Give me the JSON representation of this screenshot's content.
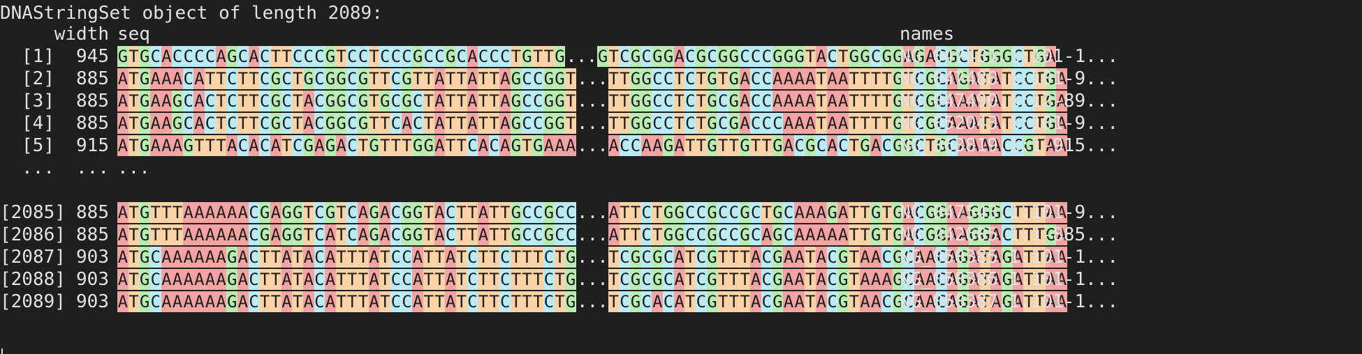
{
  "terminal": {
    "header_line": "DNAStringSet object of length 2089:",
    "col_width": "width",
    "col_seq": "seq",
    "col_names": "names",
    "ellipsis_index": "...",
    "ellipsis_width": "...",
    "ellipsis_seq": "...",
    "seq_gap": "...",
    "rows": [
      {
        "index": "[1]",
        "width": "945",
        "left": "GTGCACCCCAGCACTTCCCGTCCTCCCGCCGCACCCTGTTG",
        "right": "GTCGCGGACGCGGCCCGGGTACTGGCGGAGACGCTGGGCTGA",
        "name": "NG_047481.1:101-1..."
      },
      {
        "index": "[2]",
        "width": "885",
        "left": "ATGAAACATTCTTCGCTGCGGCGTTCGTTATTATTAGCCGGT",
        "right": "TTGGCCTCTGTGACCAAAATAATTTTGTCGCAGATATCCTGA",
        "name": "NG_047488.1:101-9..."
      },
      {
        "index": "[3]",
        "width": "885",
        "left": "ATGAAGCACTCTTCGCTACGGCGTGCGCTATTATTAGCCGGT",
        "right": "TTGGCCTCTGCGACCAAAATAATTTTGTCGCAAATATCCTGA",
        "name": "NG_047490.1:12-89..."
      },
      {
        "index": "[4]",
        "width": "885",
        "left": "ATGAAGCACTCTTCGCTACGGCGTTCACTATTATTAGCCGGT",
        "right": "TTGGCCTCTGCGACCCAAATAATTTTGTCGCAAATATCCTGA",
        "name": "NG_052043.1:101-9..."
      },
      {
        "index": "[5]",
        "width": "915",
        "left": "ATGAAAGTTTACACATCGAGACTGTTTGGATTCACAGTGAAA",
        "right": "ACCAAGATTGTTGTTGACGCACTGACGGCTGCAAAACCGTAA",
        "name": "NG_063819.1:1-915..."
      },
      {
        "index": "[2085]",
        "width": "885",
        "left": "ATGTTTAAAAAACGAGGTCGTCAGACGGTACTTATTGCCGCC",
        "right": "ATTCTGGCCGCCGCTGCAAAGATTGTGACGGAAGGGCTTTAA",
        "name": "NG_047543.1:101-9..."
      },
      {
        "index": "[2086]",
        "width": "885",
        "left": "ATGTTTAAAAAACGAGGTCATCAGACGGTACTTATTGCCGCC",
        "right": "ATTCTGGCCGCCGCAGCAAAAATTGTGACGGAAGGACTTTGA",
        "name": "NG_242605.1:1-885..."
      },
      {
        "index": "[2087]",
        "width": "903",
        "left": "ATGCAAAAAAGACTTATACATTTATCCATTATCTTCTTTCTG",
        "right": "TCGCGCATCGTTTACGAATACGTAACGCAACAGATAGATTAA",
        "name": "NG_050385.1:101-1..."
      },
      {
        "index": "[2088]",
        "width": "903",
        "left": "ATGCAAAAAAGACTTATACATTTATCCATTATCTTCTTTCTG",
        "right": "TCGCGCATCGTTTACGAATACGTAAAGCAACAGATAGATTAA",
        "name": "NG_050386.1:101-1..."
      },
      {
        "index": "[2089]",
        "width": "903",
        "left": "ATGCAAAAAAGACTTATACATTTATCCATTATCTTCTTTCTG",
        "right": "TCGCACATCGTTTACGAATACGTAACGCAACAGATAGATTAA",
        "name": "NG_050387.1:101-1..."
      }
    ]
  }
}
